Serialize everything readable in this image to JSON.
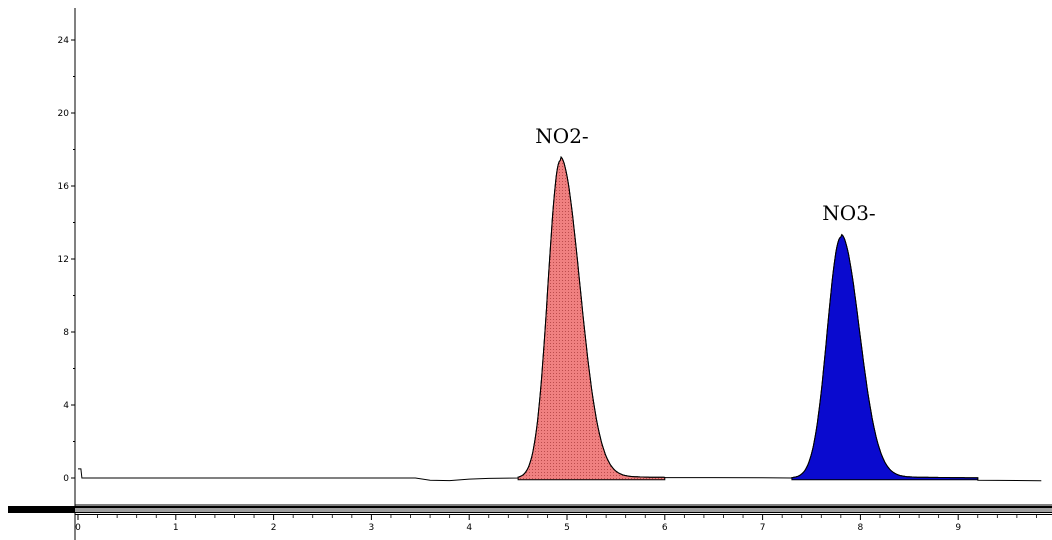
{
  "chart_data": {
    "type": "line",
    "title": "",
    "xlabel": "",
    "ylabel": "",
    "xlim": [
      0,
      9.85
    ],
    "ylim": [
      -1.5,
      25.5
    ],
    "x_ticks": [
      0,
      1,
      2,
      3,
      4,
      5,
      6,
      7,
      8,
      9
    ],
    "y_ticks": [
      0,
      4,
      8,
      12,
      16,
      20,
      24
    ],
    "x_tick_labels": [
      "0",
      "1",
      "2",
      "3",
      "4",
      "5",
      "6",
      "7",
      "8",
      "9"
    ],
    "y_tick_labels": [
      "0",
      "4",
      "8",
      "12",
      "16",
      "20",
      "24"
    ],
    "grid": false,
    "legend": "none",
    "baseline": -0.1,
    "trace": [
      [
        0.0,
        0.5
      ],
      [
        0.03,
        0.5
      ],
      [
        0.04,
        0.0
      ],
      [
        0.5,
        0.0
      ],
      [
        1.0,
        0.0
      ],
      [
        1.5,
        0.0
      ],
      [
        2.0,
        0.0
      ],
      [
        2.5,
        0.0
      ],
      [
        3.0,
        0.0
      ],
      [
        3.45,
        0.0
      ],
      [
        3.6,
        -0.12
      ],
      [
        3.8,
        -0.14
      ],
      [
        4.0,
        -0.06
      ],
      [
        4.2,
        -0.02
      ],
      [
        4.5,
        0.0
      ]
    ],
    "peaks": [
      {
        "name": "NO2-",
        "retention_time": 4.93,
        "height": 17.4,
        "start": 4.5,
        "end": 6.0,
        "sigma_left": 0.125,
        "sigma_right": 0.2,
        "fill_color": "#f08080",
        "stroke_color": "#000000"
      },
      {
        "name": "NO3-",
        "retention_time": 7.8,
        "height": 13.2,
        "start": 7.3,
        "end": 9.2,
        "sigma_left": 0.14,
        "sigma_right": 0.19,
        "fill_color": "#0a0acf",
        "stroke_color": "#000000"
      }
    ],
    "colors": {
      "line": "#000000",
      "axis": "#000000",
      "peak_NO2": "#f08080",
      "peak_NO3": "#0a0acf"
    }
  },
  "annotations": {
    "no2_label": "NO2-",
    "no3_label": "NO3-"
  }
}
